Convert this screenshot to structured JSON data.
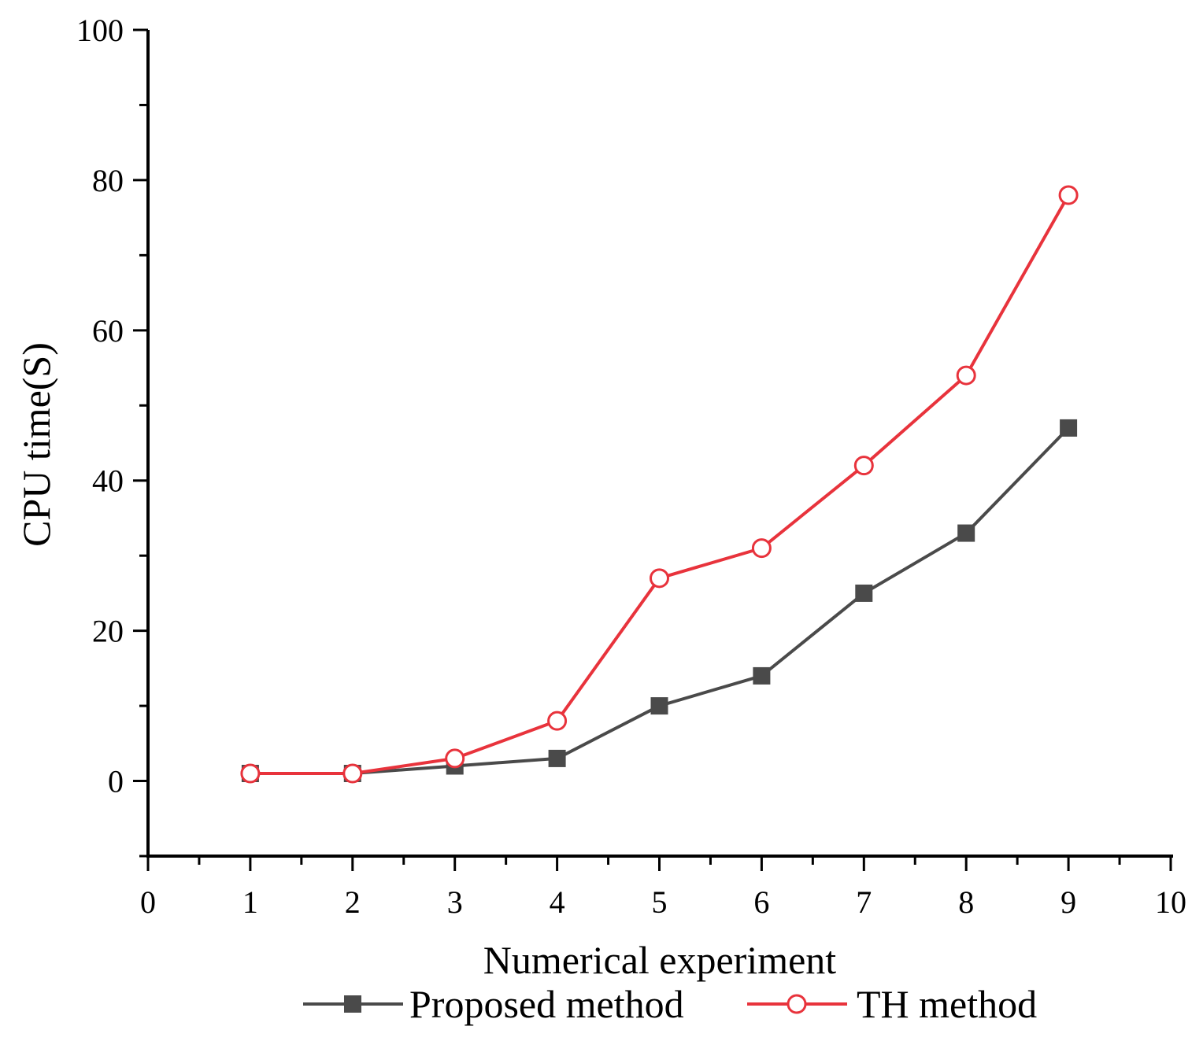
{
  "chart_data": {
    "type": "line",
    "title": "",
    "xlabel": "Numerical experiment",
    "ylabel": "CPU time(S)",
    "xlim": [
      0,
      10
    ],
    "ylim": [
      -10,
      100
    ],
    "x_ticks": [
      0,
      1,
      2,
      3,
      4,
      5,
      6,
      7,
      8,
      9,
      10
    ],
    "x_tick_labels": [
      "0",
      "1",
      "2",
      "3",
      "4",
      "5",
      "6",
      "7",
      "8",
      "9",
      "10"
    ],
    "y_ticks": [
      0,
      20,
      40,
      60,
      80,
      100
    ],
    "y_tick_labels": [
      "0",
      "20",
      "40",
      "60",
      "80",
      "100"
    ],
    "x_minor_ticks": [
      0.5,
      1.5,
      2.5,
      3.5,
      4.5,
      5.5,
      6.5,
      7.5,
      8.5,
      9.5
    ],
    "y_minor_ticks": [
      -10,
      10,
      30,
      50,
      70,
      90
    ],
    "grid": false,
    "legend_position": "bottom-center",
    "series": [
      {
        "name": "Proposed method",
        "color": "#4a4a4a",
        "marker": "filled-square",
        "x": [
          1,
          2,
          3,
          4,
          5,
          6,
          7,
          8,
          9
        ],
        "values": [
          1,
          1,
          2,
          3,
          10,
          14,
          25,
          33,
          47
        ]
      },
      {
        "name": "TH method",
        "color": "#e8333c",
        "marker": "open-circle",
        "x": [
          1,
          2,
          3,
          4,
          5,
          6,
          7,
          8,
          9
        ],
        "values": [
          1,
          1,
          3,
          8,
          27,
          31,
          42,
          54,
          78
        ]
      }
    ]
  }
}
